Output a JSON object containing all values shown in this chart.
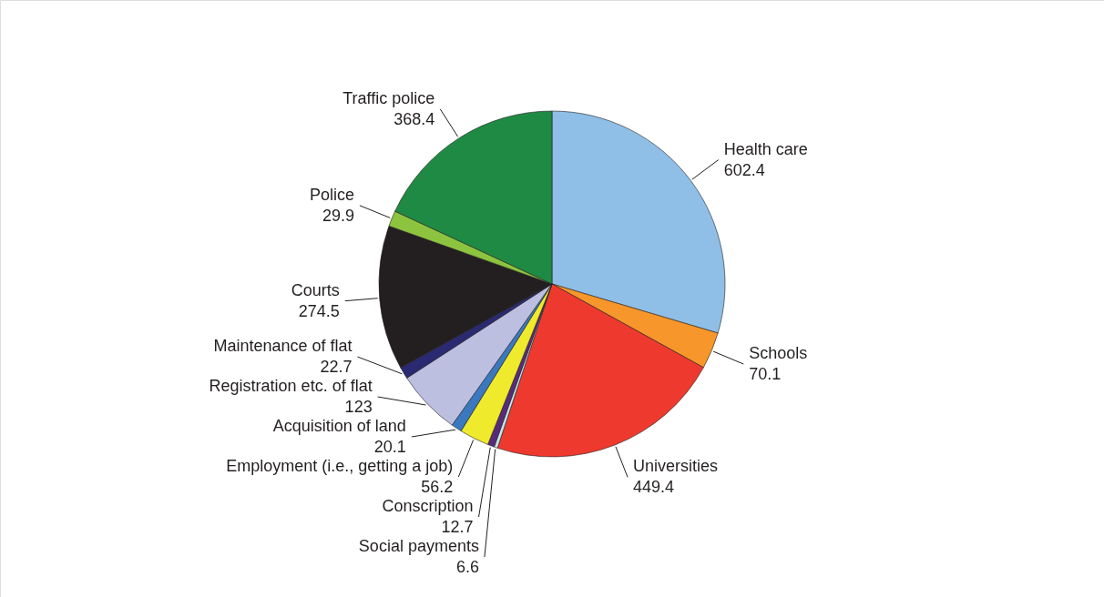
{
  "chart_data": {
    "type": "pie",
    "data_labels": true,
    "categories": [
      "Health care",
      "Schools",
      "Universities",
      "Social payments",
      "Conscription",
      "Employment (i.e., getting a job)",
      "Acquisition of land",
      "Registration etc. of flat",
      "Maintenance of flat",
      "Courts",
      "Police",
      "Traffic police"
    ],
    "values": [
      602.4,
      70.1,
      449.4,
      6.6,
      12.7,
      56.2,
      20.1,
      123,
      22.7,
      274.5,
      29.9,
      368.4
    ],
    "colors": [
      "#8fbfe6",
      "#f7962a",
      "#ee3a2e",
      "#bfe6ee",
      "#5a2a7a",
      "#f0ea2c",
      "#3a78c0",
      "#bcbfe0",
      "#2a2a72",
      "#231f20",
      "#8cc43f",
      "#1f8a43"
    ]
  }
}
